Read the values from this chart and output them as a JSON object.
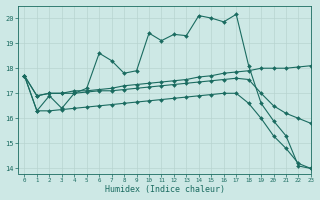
{
  "xlabel": "Humidex (Indice chaleur)",
  "xlim": [
    -0.5,
    23
  ],
  "ylim": [
    13.8,
    20.5
  ],
  "yticks": [
    14,
    15,
    16,
    17,
    18,
    19,
    20
  ],
  "xticks": [
    0,
    1,
    2,
    3,
    4,
    5,
    6,
    7,
    8,
    9,
    10,
    11,
    12,
    13,
    14,
    15,
    16,
    17,
    18,
    19,
    20,
    21,
    22,
    23
  ],
  "bg_color": "#cde8e5",
  "grid_color": "#b8d4d0",
  "line_color": "#1a6b60",
  "series": [
    {
      "x": [
        0,
        1,
        2,
        3,
        4,
        5,
        6,
        7,
        8,
        9,
        10,
        11,
        12,
        13,
        14,
        15,
        16,
        17,
        18,
        19,
        20,
        21,
        22,
        23
      ],
      "y": [
        17.7,
        16.3,
        16.9,
        16.4,
        17.0,
        17.2,
        18.6,
        18.3,
        17.8,
        17.9,
        19.4,
        19.1,
        19.35,
        19.3,
        20.1,
        20.0,
        19.85,
        20.15,
        18.1,
        16.6,
        15.9,
        15.3,
        14.1,
        14.0
      ]
    },
    {
      "x": [
        0,
        1,
        2,
        3,
        4,
        5,
        6,
        7,
        8,
        9,
        10,
        11,
        12,
        13,
        14,
        15,
        16,
        17,
        18,
        19,
        20,
        21,
        22,
        23
      ],
      "y": [
        17.7,
        16.9,
        17.0,
        17.0,
        17.1,
        17.1,
        17.15,
        17.2,
        17.3,
        17.35,
        17.4,
        17.45,
        17.5,
        17.55,
        17.65,
        17.7,
        17.8,
        17.85,
        17.9,
        18.0,
        18.0,
        18.0,
        18.05,
        18.1
      ]
    },
    {
      "x": [
        0,
        1,
        2,
        3,
        4,
        5,
        6,
        7,
        8,
        9,
        10,
        11,
        12,
        13,
        14,
        15,
        16,
        17,
        18,
        19,
        20,
        21,
        22,
        23
      ],
      "y": [
        17.7,
        16.9,
        17.0,
        17.0,
        17.0,
        17.05,
        17.1,
        17.1,
        17.15,
        17.2,
        17.25,
        17.3,
        17.35,
        17.4,
        17.45,
        17.5,
        17.55,
        17.6,
        17.55,
        17.0,
        16.5,
        16.2,
        16.0,
        15.8
      ]
    },
    {
      "x": [
        0,
        1,
        2,
        3,
        4,
        5,
        6,
        7,
        8,
        9,
        10,
        11,
        12,
        13,
        14,
        15,
        16,
        17,
        18,
        19,
        20,
        21,
        22,
        23
      ],
      "y": [
        17.7,
        16.3,
        16.3,
        16.35,
        16.4,
        16.45,
        16.5,
        16.55,
        16.6,
        16.65,
        16.7,
        16.75,
        16.8,
        16.85,
        16.9,
        16.95,
        17.0,
        17.0,
        16.6,
        16.0,
        15.3,
        14.8,
        14.2,
        14.0
      ]
    }
  ]
}
